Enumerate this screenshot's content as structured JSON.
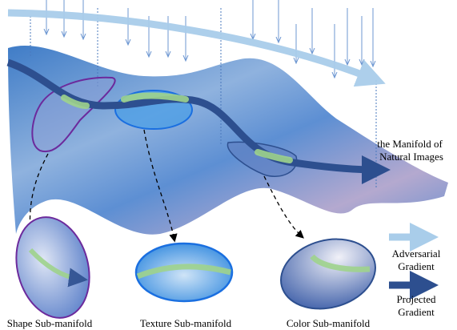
{
  "manifold_label": [
    "the Manifold of",
    "Natural Images"
  ],
  "legend": {
    "adversarial": [
      "Adversarial",
      "Gradient"
    ],
    "projected": [
      "Projected",
      "Gradient"
    ]
  },
  "submanifolds": {
    "shape": "Shape Sub-manifold",
    "texture": "Texture Sub-manifold",
    "color": "Color Sub-manifold"
  }
}
